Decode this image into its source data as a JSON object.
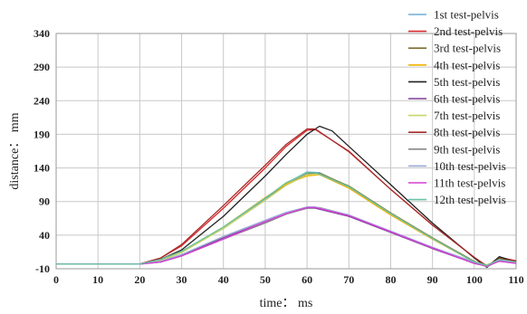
{
  "chart_data": {
    "type": "line",
    "title": "",
    "xlabel": "time： ms",
    "ylabel": "distance： mm",
    "xlim": [
      0,
      110
    ],
    "ylim": [
      -10,
      340
    ],
    "x_ticks": [
      0,
      10,
      20,
      30,
      40,
      50,
      60,
      70,
      80,
      90,
      100,
      110
    ],
    "y_ticks": [
      -10,
      40,
      90,
      140,
      190,
      240,
      290,
      340
    ],
    "grid": true,
    "legend": "right",
    "series": [
      {
        "name": "1st test-pelvis",
        "color": "#6baed6",
        "x": [
          0,
          20,
          25,
          30,
          40,
          50,
          55,
          60,
          63,
          70,
          80,
          90,
          100,
          103,
          106,
          110
        ],
        "y": [
          -3,
          -3,
          3,
          16,
          50,
          94,
          117,
          134,
          133,
          112,
          72,
          35,
          0,
          -5,
          4,
          0
        ]
      },
      {
        "name": "2nd test-pelvis",
        "color": "#d62728",
        "x": [
          0,
          20,
          25,
          30,
          40,
          50,
          55,
          60,
          62,
          70,
          80,
          90,
          100,
          103,
          106,
          110
        ],
        "y": [
          -3,
          -3,
          6,
          24,
          80,
          140,
          172,
          196,
          197,
          165,
          108,
          55,
          7,
          -6,
          7,
          2
        ]
      },
      {
        "name": "3rd test-pelvis",
        "color": "#7b6d2e",
        "x": [
          0,
          20,
          25,
          30,
          40,
          50,
          55,
          60,
          63,
          70,
          80,
          90,
          100,
          103,
          106,
          110
        ],
        "y": [
          -3,
          -3,
          4,
          15,
          50,
          92,
          115,
          131,
          132,
          113,
          73,
          36,
          1,
          -6,
          6,
          1
        ]
      },
      {
        "name": "4th test-pelvis",
        "color": "#f0b400",
        "x": [
          0,
          20,
          25,
          30,
          40,
          50,
          55,
          60,
          63,
          70,
          80,
          90,
          100,
          103,
          106,
          110
        ],
        "y": [
          -3,
          -3,
          3,
          15,
          52,
          96,
          116,
          128,
          130,
          110,
          70,
          34,
          0,
          -5,
          5,
          0
        ]
      },
      {
        "name": "5th test-pelvis",
        "color": "#222222",
        "x": [
          0,
          20,
          25,
          30,
          40,
          50,
          55,
          60,
          63,
          66,
          70,
          80,
          90,
          100,
          103,
          106,
          110
        ],
        "y": [
          -3,
          -3,
          4,
          18,
          68,
          128,
          160,
          190,
          202,
          195,
          172,
          115,
          58,
          6,
          -8,
          8,
          0
        ]
      },
      {
        "name": "6th test-pelvis",
        "color": "#7e3f98",
        "x": [
          0,
          20,
          25,
          30,
          40,
          50,
          55,
          60,
          62,
          70,
          80,
          90,
          100,
          103,
          106,
          110
        ],
        "y": [
          -3,
          -3,
          0,
          10,
          36,
          60,
          72,
          80,
          80,
          68,
          44,
          20,
          -2,
          -6,
          2,
          -2
        ]
      },
      {
        "name": "7th test-pelvis",
        "color": "#c8d66b",
        "x": [
          0,
          20,
          25,
          30,
          40,
          50,
          55,
          60,
          63,
          70,
          80,
          90,
          100,
          103,
          106,
          110
        ],
        "y": [
          -3,
          -3,
          2,
          14,
          50,
          92,
          114,
          130,
          131,
          112,
          72,
          35,
          0,
          -4,
          3,
          0
        ]
      },
      {
        "name": "8th test-pelvis",
        "color": "#a52a2a",
        "x": [
          0,
          20,
          25,
          30,
          40,
          50,
          55,
          60,
          62,
          70,
          80,
          90,
          100,
          103,
          106,
          110
        ],
        "y": [
          -3,
          -3,
          6,
          26,
          84,
          144,
          175,
          198,
          198,
          164,
          108,
          55,
          7,
          -6,
          5,
          1
        ]
      },
      {
        "name": "9th test-pelvis",
        "color": "#888888",
        "x": [
          0,
          20,
          25,
          30,
          40,
          50,
          55,
          60,
          63,
          70,
          80,
          90,
          100,
          103,
          106,
          110
        ],
        "y": [
          -3,
          -3,
          0,
          9,
          34,
          58,
          71,
          80,
          81,
          70,
          45,
          21,
          -1,
          -7,
          2,
          -1
        ]
      },
      {
        "name": "10th test-pelvis",
        "color": "#9aa7d6",
        "x": [
          0,
          20,
          25,
          30,
          40,
          50,
          55,
          60,
          62,
          70,
          80,
          90,
          100,
          103,
          106,
          110
        ],
        "y": [
          -3,
          -3,
          1,
          11,
          38,
          62,
          74,
          82,
          82,
          70,
          46,
          22,
          0,
          -5,
          3,
          -1
        ]
      },
      {
        "name": "11th test-pelvis",
        "color": "#d63fd6",
        "x": [
          0,
          20,
          25,
          30,
          40,
          50,
          55,
          60,
          62,
          70,
          80,
          90,
          100,
          103,
          106,
          110
        ],
        "y": [
          -3,
          -3,
          0,
          9,
          34,
          60,
          72,
          81,
          81,
          69,
          45,
          21,
          -2,
          -6,
          1,
          -2
        ]
      },
      {
        "name": "12th test-pelvis",
        "color": "#66c2a5",
        "x": [
          0,
          20,
          25,
          30,
          40,
          50,
          55,
          60,
          62,
          70,
          80,
          90,
          100,
          103,
          106,
          110
        ],
        "y": [
          -3,
          -3,
          4,
          16,
          52,
          95,
          118,
          133,
          133,
          112,
          72,
          35,
          0,
          -5,
          4,
          0
        ]
      }
    ]
  }
}
